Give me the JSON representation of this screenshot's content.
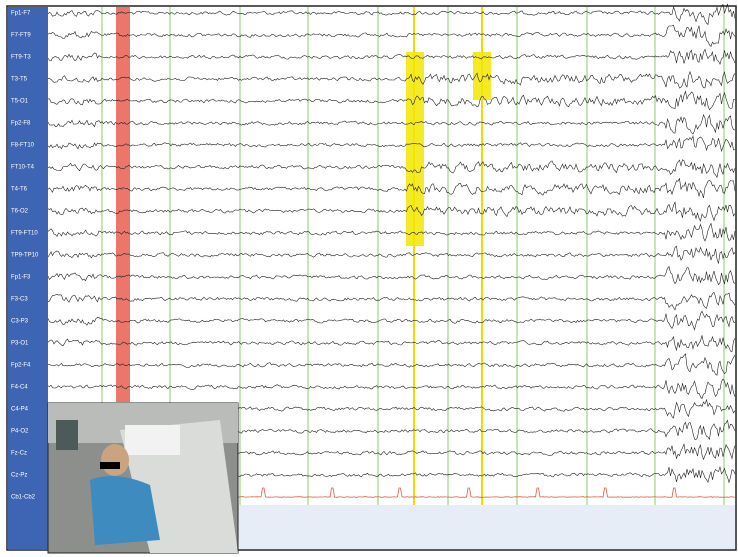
{
  "channels": [
    "Fp1-F7",
    "F7-FT9",
    "FT9-T3",
    "T3-T5",
    "T5-O1",
    "Fp2-F8",
    "F8-FT10",
    "FT10-T4",
    "T4-T6",
    "T6-O2",
    "FT9-FT10",
    "TP9-TP10",
    "Fp1-F3",
    "F3-C3",
    "C3-P3",
    "P3-O1",
    "Fp2-F4",
    "F4-C4",
    "C4-P4",
    "P4-O2",
    "Fz-Cz",
    "Cz-Pz",
    "Cb1-Cb2"
  ]
}
